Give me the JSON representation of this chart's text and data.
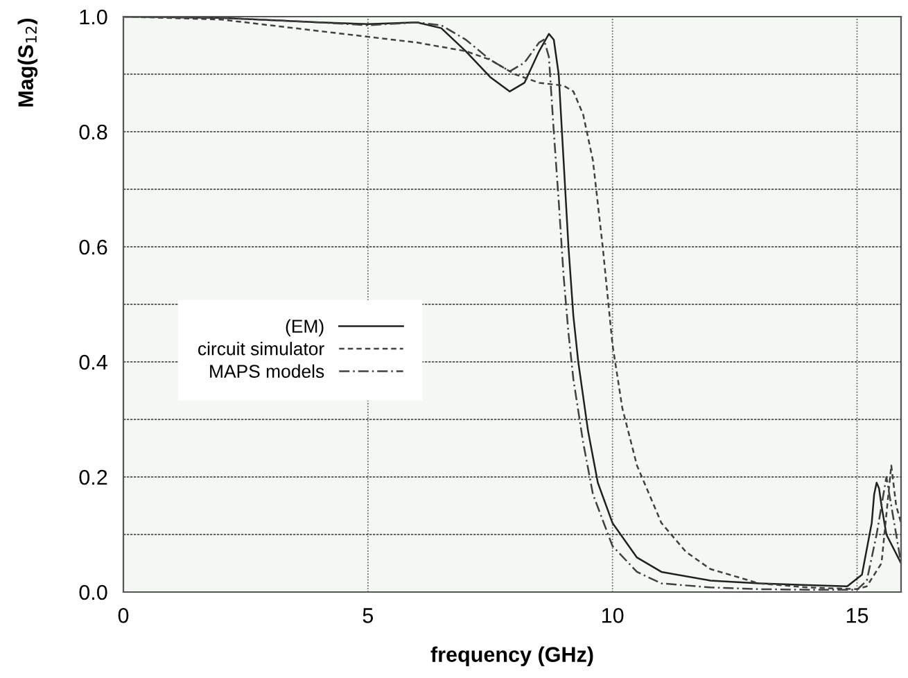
{
  "chart_data": {
    "type": "line",
    "xlabel": "frequency (GHz)",
    "ylabel": "Mag(S$_{12}$)",
    "xlim": [
      0,
      15.9
    ],
    "ylim": [
      0,
      1.0
    ],
    "xticks": [
      0,
      5,
      10,
      15
    ],
    "yticks": [
      {
        "value": 0,
        "label": "0.0"
      },
      {
        "value": 0.1,
        "label": null
      },
      0.2,
      {
        "value": 0.3,
        "label": null
      },
      0.4,
      {
        "value": 0.5,
        "label": null
      },
      0.6,
      {
        "value": 0.7,
        "label": null
      },
      0.8,
      {
        "value": 0.9,
        "label": null
      },
      {
        "value": 1.0,
        "label": "1.0"
      }
    ],
    "grid": true,
    "legend": "left",
    "marker": "none",
    "series": [
      {
        "name": "(EM)",
        "color": "#202020",
        "line_style": "solid",
        "x": [
          0,
          2,
          4,
          5,
          6,
          6.5,
          7,
          7.5,
          7.9,
          8.2,
          8.5,
          8.7,
          8.8,
          8.9,
          9.0,
          9.1,
          9.2,
          9.3,
          9.5,
          9.7,
          10.0,
          10.5,
          11,
          12,
          13,
          14,
          14.8,
          15.1,
          15.3,
          15.35,
          15.4,
          15.45,
          15.5,
          15.6,
          15.9
        ],
        "values": [
          1.0,
          0.998,
          0.99,
          0.987,
          0.99,
          0.98,
          0.94,
          0.895,
          0.87,
          0.885,
          0.94,
          0.97,
          0.96,
          0.9,
          0.75,
          0.6,
          0.48,
          0.4,
          0.28,
          0.19,
          0.12,
          0.06,
          0.035,
          0.02,
          0.015,
          0.012,
          0.01,
          0.03,
          0.12,
          0.17,
          0.19,
          0.18,
          0.15,
          0.1,
          0.05
        ]
      },
      {
        "name": "circuit simulator",
        "color": "#404040",
        "line_style": "dashed",
        "x": [
          0,
          2,
          3,
          4,
          5,
          6,
          7,
          7.5,
          8,
          8.5,
          9,
          9.2,
          9.4,
          9.6,
          9.8,
          10,
          10.2,
          10.5,
          11,
          11.5,
          12,
          13,
          14,
          15,
          15.2,
          15.5,
          15.7,
          15.8,
          15.9
        ],
        "values": [
          1.0,
          0.995,
          0.985,
          0.975,
          0.965,
          0.955,
          0.94,
          0.925,
          0.9,
          0.885,
          0.88,
          0.87,
          0.83,
          0.75,
          0.6,
          0.43,
          0.32,
          0.22,
          0.12,
          0.07,
          0.04,
          0.015,
          0.008,
          0.005,
          0.01,
          0.05,
          0.22,
          0.15,
          0.12
        ]
      },
      {
        "name": "MAPS models",
        "color": "#404040",
        "line_style": "dashdot",
        "x": [
          0,
          2,
          4,
          5,
          6,
          6.5,
          7,
          7.5,
          7.9,
          8.2,
          8.5,
          8.6,
          8.7,
          8.8,
          8.9,
          9.0,
          9.1,
          9.2,
          9.4,
          9.6,
          10,
          10.5,
          11,
          12,
          13,
          14,
          15,
          15.2,
          15.4,
          15.6,
          15.7,
          15.9
        ],
        "values": [
          1.0,
          0.998,
          0.99,
          0.985,
          0.99,
          0.985,
          0.96,
          0.925,
          0.905,
          0.92,
          0.955,
          0.96,
          0.93,
          0.8,
          0.68,
          0.55,
          0.45,
          0.37,
          0.26,
          0.17,
          0.08,
          0.035,
          0.015,
          0.008,
          0.005,
          0.004,
          0.004,
          0.02,
          0.1,
          0.2,
          0.15,
          0.05
        ]
      }
    ]
  }
}
